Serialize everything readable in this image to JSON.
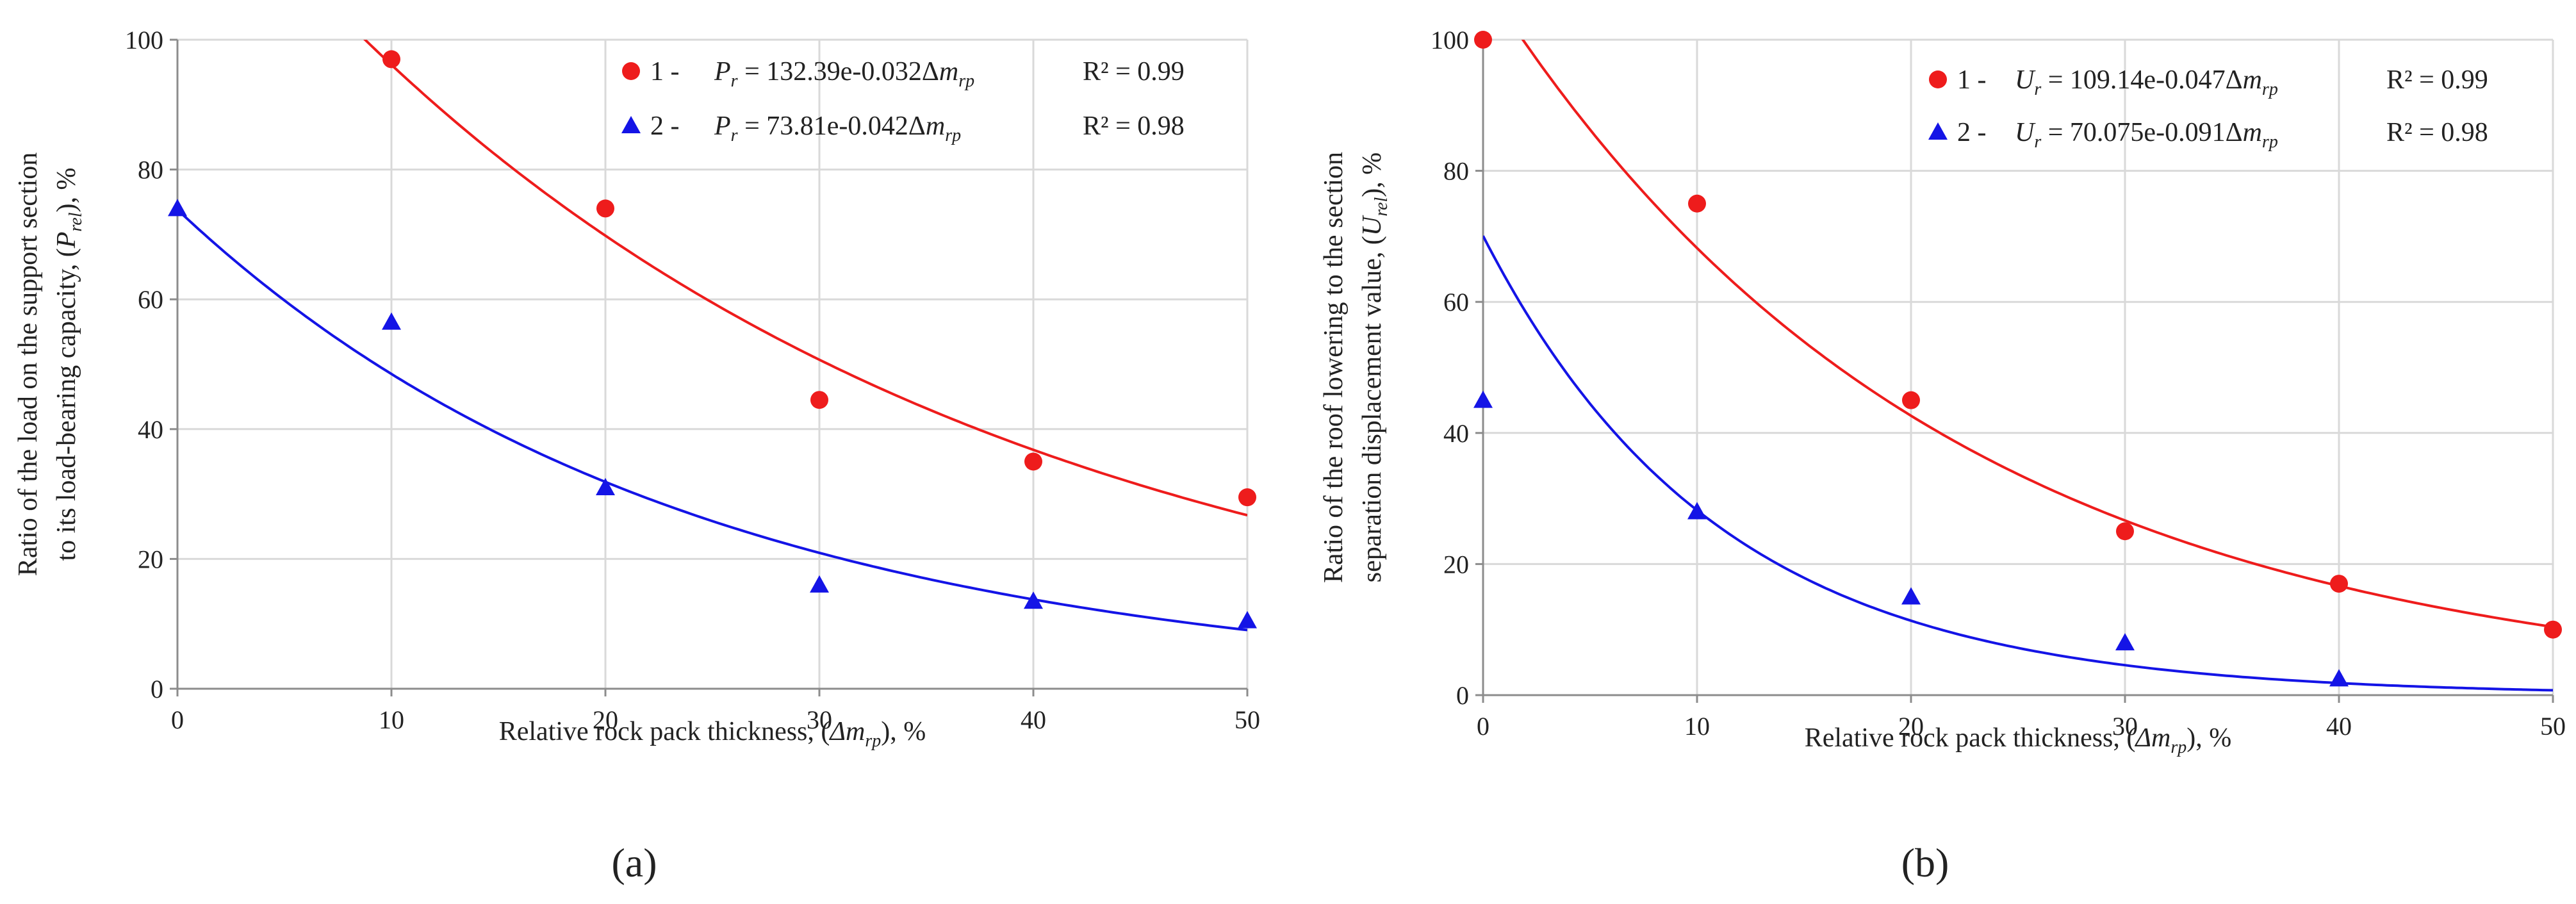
{
  "figure": {
    "panels": [
      "(a)",
      "(b)"
    ]
  },
  "colors": {
    "series1": "#ee1c1c",
    "series2": "#1414e6",
    "grid": "#d9d9d9",
    "axis": "#8c8c8c"
  },
  "chart_data": [
    {
      "type": "scatter",
      "panel": "(a)",
      "xlabel": "Relative rock pack thickness, (Δm_rp), %",
      "xlabel_parts": {
        "pre": "Relative rock pack thickness, (",
        "sym": "Δm",
        "sub": "rp",
        "post": "), %"
      },
      "ylabel_line1": "Ratio of the load on the support section",
      "ylabel_line2_parts": {
        "pre": "to its load-bearing capacity, (",
        "sym": "P",
        "sub": "rel",
        "post": "), %"
      },
      "xlim": [
        0,
        50
      ],
      "ylim": [
        0,
        100
      ],
      "xticks": [
        "0",
        "10",
        "20",
        "30",
        "40",
        "50"
      ],
      "yticks": [
        "0",
        "20",
        "40",
        "60",
        "80",
        "100"
      ],
      "grid": true,
      "legend_position": "top-right",
      "series": [
        {
          "name": "1",
          "marker": "circle",
          "color": "#ee1c1c",
          "x": [
            10,
            20,
            30,
            40,
            50
          ],
          "y": [
            97,
            74,
            44.5,
            35,
            29.5
          ],
          "fit": {
            "type": "exponential",
            "a": 132.39,
            "b": -0.032
          },
          "legend": {
            "num": "1 -",
            "lhs_sym": "P",
            "lhs_sub": "r",
            "rhs": " = 132.39e-0.032Δ",
            "rhs_sym": "m",
            "rhs_sub": "rp",
            "r2": "R² = 0.99"
          }
        },
        {
          "name": "2",
          "marker": "triangle",
          "color": "#1414e6",
          "x": [
            0,
            10,
            20,
            30,
            40,
            50
          ],
          "y": [
            74,
            56.5,
            31,
            16,
            13.5,
            10.5
          ],
          "fit": {
            "type": "exponential",
            "a": 73.81,
            "b": -0.042
          },
          "legend": {
            "num": "2 -",
            "lhs_sym": "P",
            "lhs_sub": "r",
            "rhs": " = 73.81e-0.042Δ",
            "rhs_sym": "m",
            "rhs_sub": "rp",
            "r2": "R² = 0.98"
          }
        }
      ]
    },
    {
      "type": "scatter",
      "panel": "(b)",
      "xlabel": "Relative rock pack thickness, (Δm_rp), %",
      "xlabel_parts": {
        "pre": "Relative rock pack thickness, (",
        "sym": "Δm",
        "sub": "rp",
        "post": "), %"
      },
      "ylabel_line1": "Ratio of the roof lowering to the section",
      "ylabel_line2_parts": {
        "pre": "separation displacement value, (",
        "sym": "U",
        "sub": "rel",
        "post": "), %"
      },
      "xlim": [
        0,
        50
      ],
      "ylim": [
        0,
        100
      ],
      "xticks": [
        "0",
        "10",
        "20",
        "30",
        "40",
        "50"
      ],
      "yticks": [
        "0",
        "20",
        "40",
        "60",
        "80",
        "100"
      ],
      "grid": true,
      "legend_position": "top-right",
      "series": [
        {
          "name": "1",
          "marker": "circle",
          "color": "#ee1c1c",
          "x": [
            0,
            10,
            20,
            30,
            40,
            50
          ],
          "y": [
            100,
            75,
            45,
            25,
            17,
            10
          ],
          "fit": {
            "type": "exponential",
            "a": 109.14,
            "b": -0.047
          },
          "legend": {
            "num": "1 -",
            "lhs_sym": "U",
            "lhs_sub": "r",
            "rhs": " = 109.14e-0.047Δ",
            "rhs_sym": "m",
            "rhs_sub": "rp",
            "r2": "R² = 0.99"
          }
        },
        {
          "name": "2",
          "marker": "triangle",
          "color": "#1414e6",
          "x": [
            0,
            10,
            20,
            30,
            40
          ],
          "y": [
            45,
            28,
            15,
            8,
            2.5
          ],
          "fit": {
            "type": "exponential",
            "a": 70.075,
            "b": -0.091
          },
          "legend": {
            "num": "2 -",
            "lhs_sym": "U",
            "lhs_sub": "r",
            "rhs": " = 70.075e-0.091Δ",
            "rhs_sym": "m",
            "rhs_sub": "rp",
            "r2": "R² = 0.98"
          }
        }
      ]
    }
  ]
}
